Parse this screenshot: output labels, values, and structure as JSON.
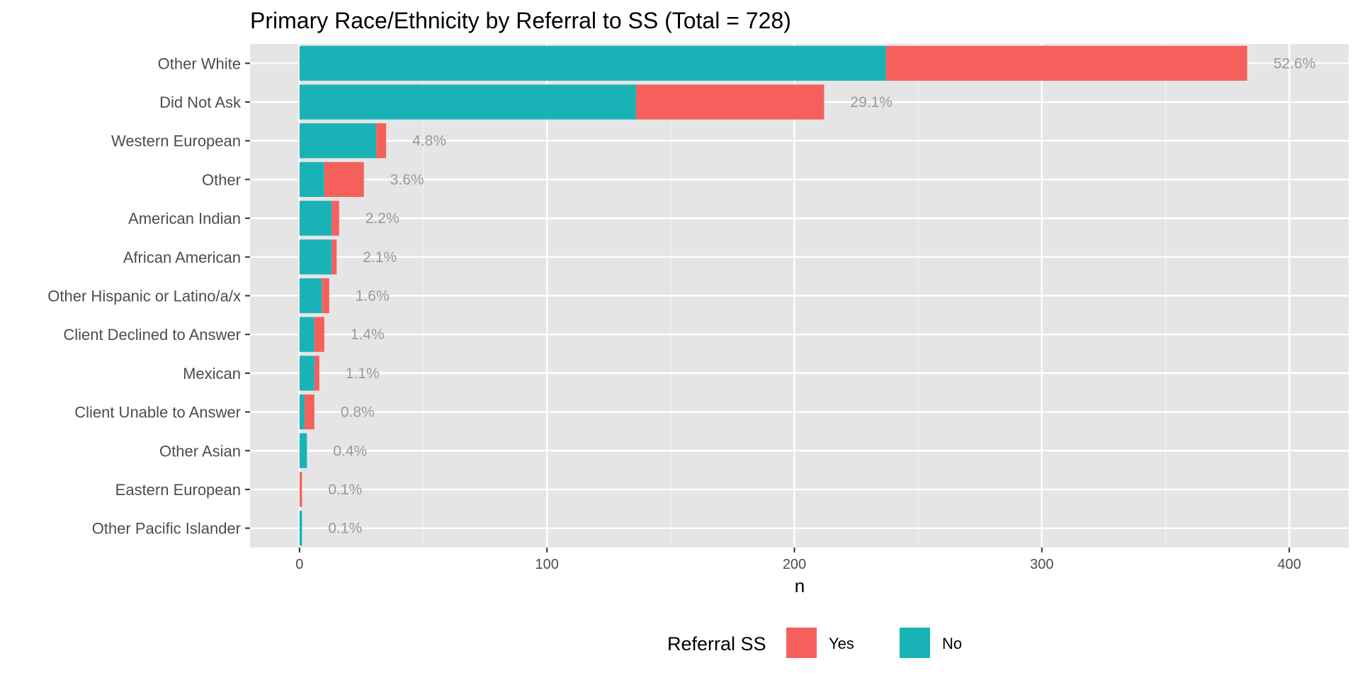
{
  "chart_data": {
    "type": "bar",
    "orientation": "horizontal",
    "stacked": true,
    "title": "Primary Race/Ethnicity by Referral to SS (Total = 728)",
    "xlabel": "n",
    "ylabel": "",
    "xlim": [
      -20,
      424
    ],
    "x_ticks": [
      0,
      100,
      200,
      300,
      400
    ],
    "grid": true,
    "legend": {
      "title": "Referral SS",
      "position": "bottom"
    },
    "categories": [
      "Other White",
      "Did Not Ask",
      "Western European",
      "Other",
      "American Indian",
      "African American",
      "Other Hispanic or Latino/a/x",
      "Client Declined to Answer",
      "Mexican",
      "Client Unable to Answer",
      "Other Asian",
      "Eastern European",
      "Other Pacific Islander"
    ],
    "series": [
      {
        "name": "No",
        "color": "#19b3b7",
        "values": [
          237,
          136,
          31,
          10,
          13,
          13,
          9,
          6,
          6,
          2,
          3,
          0,
          1
        ]
      },
      {
        "name": "Yes",
        "color": "#f5605c",
        "values": [
          146,
          76,
          4,
          16,
          3,
          2,
          3,
          4,
          2,
          4,
          0,
          1,
          0
        ]
      }
    ],
    "percent_labels": [
      "52.6%",
      "29.1%",
      "4.8%",
      "3.6%",
      "2.2%",
      "2.1%",
      "1.6%",
      "1.4%",
      "1.1%",
      "0.8%",
      "0.4%",
      "0.1%",
      "0.1%"
    ],
    "legend_order": [
      "Yes",
      "No"
    ]
  }
}
